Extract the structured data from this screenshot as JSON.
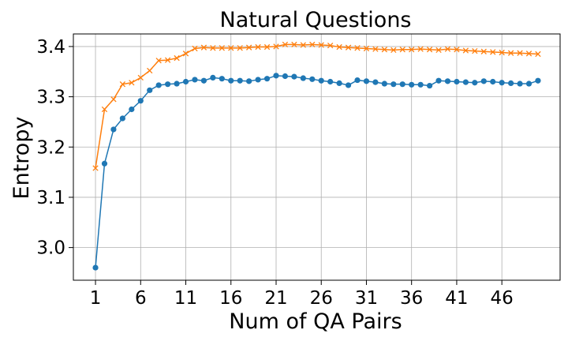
{
  "chart_data": {
    "type": "line",
    "title": "Natural Questions",
    "xlabel": "Num of QA Pairs",
    "ylabel": "Entropy",
    "x": [
      1,
      2,
      3,
      4,
      5,
      6,
      7,
      8,
      9,
      10,
      11,
      12,
      13,
      14,
      15,
      16,
      17,
      18,
      19,
      20,
      21,
      22,
      23,
      24,
      25,
      26,
      27,
      28,
      29,
      30,
      31,
      32,
      33,
      34,
      35,
      36,
      37,
      38,
      39,
      40,
      41,
      42,
      43,
      44,
      45,
      46,
      47,
      48,
      49,
      50
    ],
    "xticks": [
      1,
      6,
      11,
      16,
      21,
      26,
      31,
      36,
      41,
      46
    ],
    "xlim": [
      -1.45,
      52.45
    ],
    "yticks": [
      "3.0",
      "3.1",
      "3.2",
      "3.3",
      "3.4"
    ],
    "ylim": [
      2.935,
      3.425
    ],
    "grid": true,
    "series": [
      {
        "color": "#1f77b4",
        "marker": "circle",
        "values": [
          2.96,
          3.167,
          3.235,
          3.257,
          3.275,
          3.292,
          3.313,
          3.323,
          3.325,
          3.326,
          3.33,
          3.334,
          3.332,
          3.338,
          3.336,
          3.332,
          3.332,
          3.331,
          3.334,
          3.336,
          3.342,
          3.341,
          3.34,
          3.337,
          3.335,
          3.332,
          3.33,
          3.327,
          3.323,
          3.333,
          3.331,
          3.329,
          3.326,
          3.325,
          3.325,
          3.324,
          3.324,
          3.322,
          3.332,
          3.331,
          3.33,
          3.329,
          3.328,
          3.331,
          3.33,
          3.328,
          3.327,
          3.326,
          3.326,
          3.332
        ]
      },
      {
        "color": "#ff7f0e",
        "marker": "x",
        "values": [
          3.158,
          3.275,
          3.295,
          3.325,
          3.328,
          3.338,
          3.352,
          3.372,
          3.373,
          3.377,
          3.386,
          3.396,
          3.398,
          3.397,
          3.397,
          3.397,
          3.397,
          3.398,
          3.399,
          3.399,
          3.4,
          3.404,
          3.404,
          3.403,
          3.404,
          3.403,
          3.402,
          3.399,
          3.398,
          3.397,
          3.396,
          3.395,
          3.394,
          3.393,
          3.394,
          3.394,
          3.395,
          3.394,
          3.393,
          3.395,
          3.394,
          3.392,
          3.391,
          3.39,
          3.389,
          3.388,
          3.387,
          3.387,
          3.386,
          3.385
        ]
      }
    ]
  }
}
